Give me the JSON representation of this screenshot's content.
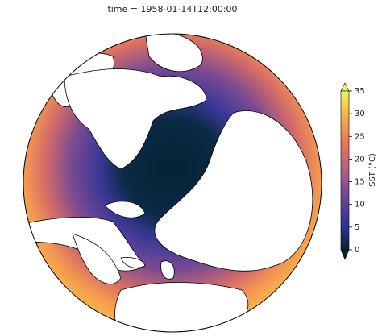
{
  "chart_data": {
    "type": "map",
    "title": "time = 1958-01-14T12:00:00",
    "colorbar": {
      "label": "SST (°C)",
      "lim": [
        0,
        35
      ],
      "ticks": [
        0,
        5,
        10,
        15,
        20,
        25,
        30,
        35
      ]
    }
  }
}
